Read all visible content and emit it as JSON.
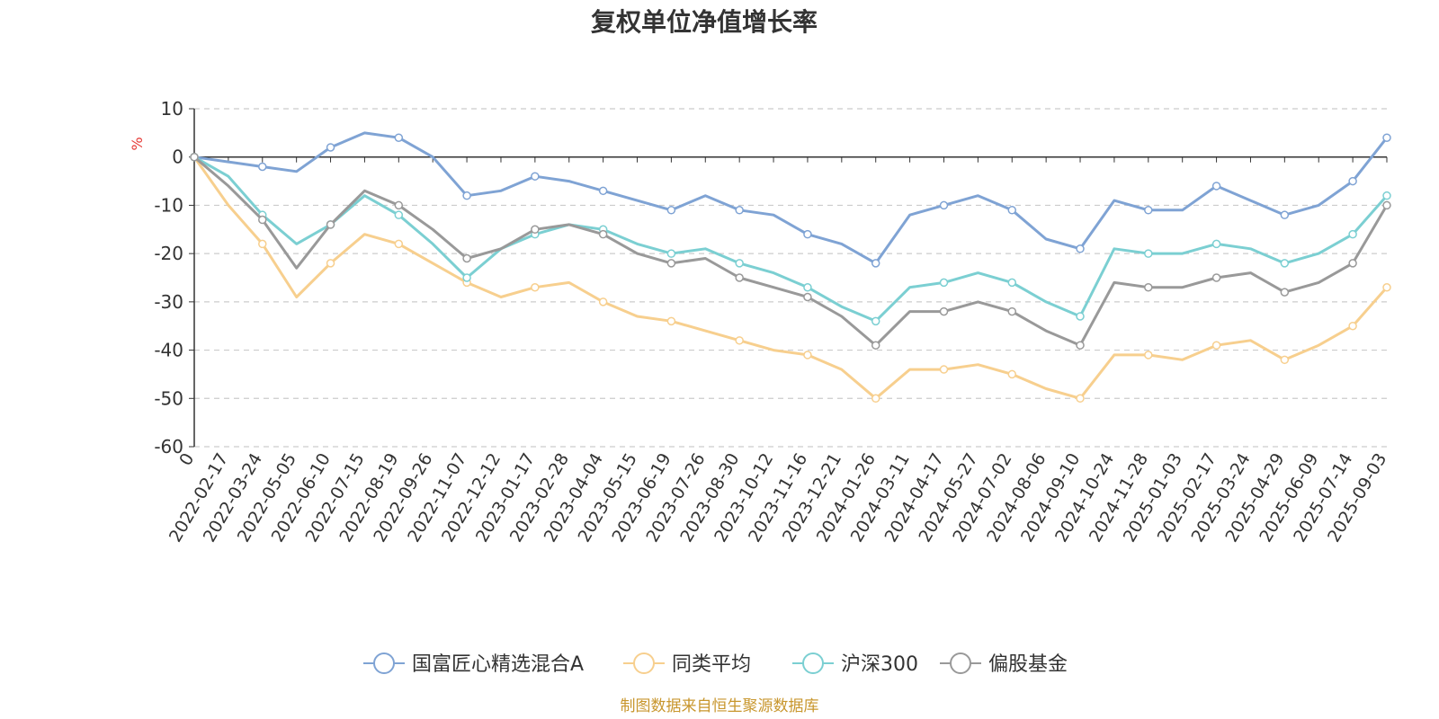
{
  "title": "复权单位净值增长率",
  "source_note": "制图数据来自恒生聚源数据库",
  "chart_data": {
    "type": "line",
    "title": "复权单位净值增长率",
    "ylabel": "%",
    "xlabel": "",
    "ylim": [
      -60,
      10
    ],
    "yticks": [
      10,
      0,
      -10,
      -20,
      -30,
      -40,
      -50,
      -60
    ],
    "grid": true,
    "legend_position": "bottom",
    "x_tick_labels": [
      "0",
      "2022-02-17",
      "2022-03-24",
      "2022-05-05",
      "2022-06-10",
      "2022-07-15",
      "2022-08-19",
      "2022-09-26",
      "2022-11-07",
      "2022-12-12",
      "2023-01-17",
      "2023-02-28",
      "2023-04-04",
      "2023-05-15",
      "2023-06-19",
      "2023-07-26",
      "2023-08-30",
      "2023-10-12",
      "2023-11-16",
      "2023-12-21",
      "2024-01-26",
      "2024-03-11",
      "2024-04-17",
      "2024-05-27",
      "2024-07-02",
      "2024-08-06",
      "2024-09-10",
      "2024-10-24",
      "2024-11-28",
      "2025-01-03",
      "2025-02-17",
      "2025-03-24",
      "2025-04-29",
      "2025-06-09",
      "2025-07-14",
      "2025-09-03"
    ],
    "x": [
      "0",
      "2022-02-17",
      "2022-03-24",
      "2022-05-05",
      "2022-06-10",
      "2022-07-15",
      "2022-08-19",
      "2022-09-26",
      "2022-11-07",
      "2022-12-12",
      "2023-01-17",
      "2023-02-28",
      "2023-04-04",
      "2023-05-15",
      "2023-06-19",
      "2023-07-26",
      "2023-08-30",
      "2023-10-12",
      "2023-11-16",
      "2023-12-21",
      "2024-01-26",
      "2024-03-11",
      "2024-04-17",
      "2024-05-27",
      "2024-07-02",
      "2024-08-06",
      "2024-09-10",
      "2024-10-24",
      "2024-11-28",
      "2025-01-03",
      "2025-02-17",
      "2025-03-24",
      "2025-04-29",
      "2025-06-09",
      "2025-07-14",
      "2025-09-03"
    ],
    "series": [
      {
        "name": "国富匠心精选混合A",
        "color": "#7fa3d4",
        "values": [
          0,
          -1,
          -2,
          -3,
          2,
          5,
          4,
          0,
          -8,
          -7,
          -4,
          -5,
          -7,
          -9,
          -11,
          -8,
          -11,
          -12,
          -16,
          -18,
          -22,
          -12,
          -10,
          -8,
          -11,
          -17,
          -19,
          -9,
          -11,
          -11,
          -6,
          -9,
          -12,
          -10,
          -5,
          4
        ]
      },
      {
        "name": "同类平均",
        "color": "#f7cf8e",
        "values": [
          0,
          -10,
          -18,
          -29,
          -22,
          -16,
          -18,
          -22,
          -26,
          -29,
          -27,
          -26,
          -30,
          -33,
          -34,
          -36,
          -38,
          -40,
          -41,
          -44,
          -50,
          -44,
          -44,
          -43,
          -45,
          -48,
          -50,
          -41,
          -41,
          -42,
          -39,
          -38,
          -42,
          -39,
          -35,
          -27
        ]
      },
      {
        "name": "沪深300",
        "color": "#7bcfd2",
        "values": [
          0,
          -4,
          -12,
          -18,
          -14,
          -8,
          -12,
          -18,
          -25,
          -19,
          -16,
          -14,
          -15,
          -18,
          -20,
          -19,
          -22,
          -24,
          -27,
          -31,
          -34,
          -27,
          -26,
          -24,
          -26,
          -30,
          -33,
          -19,
          -20,
          -20,
          -18,
          -19,
          -22,
          -20,
          -16,
          -8
        ]
      },
      {
        "name": "偏股基金",
        "color": "#999999",
        "values": [
          0,
          -6,
          -13,
          -23,
          -14,
          -7,
          -10,
          -15,
          -21,
          -19,
          -15,
          -14,
          -16,
          -20,
          -22,
          -21,
          -25,
          -27,
          -29,
          -33,
          -39,
          -32,
          -32,
          -30,
          -32,
          -36,
          -39,
          -26,
          -27,
          -27,
          -25,
          -24,
          -28,
          -26,
          -22,
          -10
        ]
      }
    ]
  }
}
